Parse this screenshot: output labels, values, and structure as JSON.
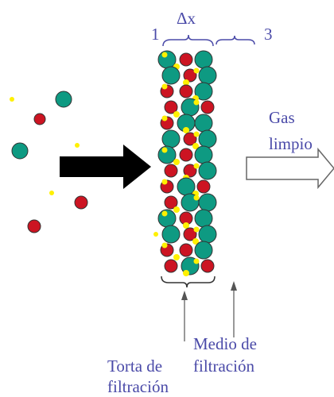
{
  "labels": {
    "zone1": "1",
    "delta": "Δx",
    "zone3": "3"
  },
  "gas": {
    "line1": "Gas",
    "line2": "limpio"
  },
  "medio": {
    "line1": "Medio de",
    "line2": "filtración"
  },
  "torta": {
    "line1": "Torta de",
    "line2": "filtración"
  }
}
